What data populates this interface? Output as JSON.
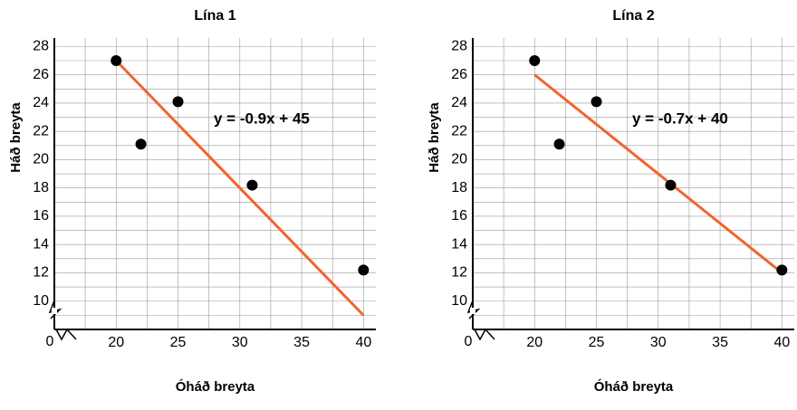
{
  "chart_data": [
    {
      "type": "scatter",
      "title": "Lína 1",
      "xlabel": "Óháð breyta",
      "ylabel": "Háð breyta",
      "x": [
        20,
        22,
        25,
        31,
        40
      ],
      "values": [
        27,
        21.1,
        24.1,
        18.2,
        12.2
      ],
      "color": "#000000",
      "line": {
        "x": [
          20,
          40
        ],
        "values": [
          27,
          9
        ],
        "color": "#f26430",
        "label": "y = -0.9x + 45"
      },
      "xlim": [
        15,
        41
      ],
      "ylim": [
        8,
        28.6
      ],
      "xticks": [
        20,
        25,
        30,
        35,
        40
      ],
      "yticks": [
        10,
        12,
        14,
        16,
        18,
        20,
        22,
        24,
        26,
        28
      ],
      "origin_label": "0",
      "axis_break": true,
      "grid": true
    },
    {
      "type": "scatter",
      "title": "Lína 2",
      "xlabel": "Óháð breyta",
      "ylabel": "Háð breyta",
      "x": [
        20,
        22,
        25,
        31,
        40
      ],
      "values": [
        27,
        21.1,
        24.1,
        18.2,
        12.2
      ],
      "color": "#000000",
      "line": {
        "x": [
          20,
          40
        ],
        "values": [
          26,
          12
        ],
        "color": "#f26430",
        "label": "y = -0.7x + 40"
      },
      "xlim": [
        15,
        41
      ],
      "ylim": [
        8,
        28.6
      ],
      "xticks": [
        20,
        25,
        30,
        35,
        40
      ],
      "yticks": [
        10,
        12,
        14,
        16,
        18,
        20,
        22,
        24,
        26,
        28
      ],
      "origin_label": "0",
      "axis_break": true,
      "grid": true
    }
  ]
}
